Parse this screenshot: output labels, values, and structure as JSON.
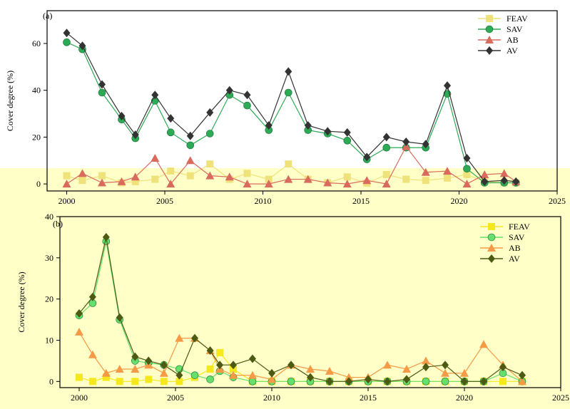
{
  "chart_data": [
    {
      "panel_label": "(a)",
      "type": "line",
      "ylabel": "Cover degree (%)",
      "xlabel": "",
      "xlim": [
        1999,
        2025
      ],
      "ylim": [
        -3,
        74
      ],
      "xticks": [
        2000,
        2005,
        2010,
        2015,
        2020,
        2025
      ],
      "yticks": [
        0,
        20,
        40,
        60
      ],
      "legend_position": "top-right",
      "series": [
        {
          "name": "FEAV",
          "color": "#f0e27a",
          "marker": "square",
          "x": [
            2000,
            2000.8,
            2001.8,
            2002.8,
            2003.5,
            2004.5,
            2005.3,
            2006.3,
            2007.3,
            2008.3,
            2009.2,
            2010.3,
            2011.3,
            2012.3,
            2013.3,
            2014.3,
            2015.3,
            2016.3,
            2017.3,
            2018.3,
            2019.4,
            2020.4,
            2021.3,
            2022.3,
            2022.9
          ],
          "values": [
            3.5,
            1.5,
            3.5,
            0.5,
            1,
            2,
            5.5,
            3.5,
            8.5,
            2,
            4.5,
            2,
            8.5,
            2,
            0.5,
            3,
            0.3,
            4,
            2,
            1.5,
            2.5,
            4,
            1,
            0.5,
            0.5
          ]
        },
        {
          "name": "SAV",
          "color": "#2daa55",
          "marker": "circle",
          "x": [
            2000,
            2000.8,
            2001.8,
            2002.8,
            2003.5,
            2004.5,
            2005.3,
            2006.3,
            2007.3,
            2008.3,
            2009.2,
            2010.3,
            2011.3,
            2012.3,
            2013.3,
            2014.3,
            2015.3,
            2016.3,
            2017.3,
            2018.3,
            2019.4,
            2020.4,
            2021.3,
            2022.3,
            2022.9
          ],
          "values": [
            60.5,
            57.5,
            39,
            27.5,
            19.5,
            35.5,
            22,
            16.5,
            21.5,
            38,
            33.5,
            23,
            39,
            23,
            21.5,
            18.5,
            10.5,
            15.5,
            15.5,
            15.5,
            38.5,
            6.5,
            0.5,
            0.5,
            0.5
          ]
        },
        {
          "name": "AB",
          "color": "#d86b5e",
          "marker": "triangle",
          "x": [
            2000,
            2000.8,
            2001.8,
            2002.8,
            2003.5,
            2004.5,
            2005.3,
            2006.3,
            2007.3,
            2008.3,
            2009.2,
            2010.3,
            2011.3,
            2012.3,
            2013.3,
            2014.3,
            2015.3,
            2016.3,
            2017.3,
            2018.3,
            2019.4,
            2020.4,
            2021.3,
            2022.3,
            2022.9
          ],
          "values": [
            0,
            4.5,
            0.5,
            1,
            3,
            11,
            0,
            10,
            3.5,
            3,
            0,
            0,
            2,
            2,
            0.5,
            0,
            1.5,
            0,
            16,
            5,
            5.5,
            0,
            4,
            4.5,
            1
          ]
        },
        {
          "name": "AV",
          "color": "#333333",
          "marker": "diamond",
          "x": [
            2000,
            2000.8,
            2001.8,
            2002.8,
            2003.5,
            2004.5,
            2005.3,
            2006.3,
            2007.3,
            2008.3,
            2009.2,
            2010.3,
            2011.3,
            2012.3,
            2013.3,
            2014.3,
            2015.3,
            2016.3,
            2017.3,
            2018.3,
            2019.4,
            2020.4,
            2021.3,
            2022.3,
            2022.9
          ],
          "values": [
            64.5,
            59,
            42.5,
            29,
            21,
            38,
            28,
            20.5,
            30.5,
            40,
            38,
            25,
            48,
            25,
            22.5,
            22,
            11.5,
            20,
            18,
            17,
            42,
            11,
            1,
            1.5,
            1
          ]
        }
      ]
    },
    {
      "panel_label": "(b)",
      "type": "line",
      "ylabel": "Cover degree (%)",
      "xlabel": "",
      "xlim": [
        1999,
        2025
      ],
      "ylim": [
        -1.5,
        40
      ],
      "xticks": [
        2000,
        2005,
        2010,
        2015,
        2020,
        2025
      ],
      "yticks": [
        0,
        10,
        20,
        30,
        40
      ],
      "legend_position": "top-right",
      "series": [
        {
          "name": "FEAV",
          "color": "#f5e81f",
          "marker": "square",
          "x": [
            2000,
            2000.7,
            2001.4,
            2002.1,
            2002.9,
            2003.6,
            2004.4,
            2005.2,
            2006,
            2006.8,
            2007.3,
            2008,
            2009,
            2010,
            2011,
            2012,
            2013,
            2014,
            2015,
            2016,
            2017,
            2018,
            2019,
            2020,
            2021,
            2022,
            2023
          ],
          "values": [
            1,
            0,
            1,
            0,
            0,
            0.5,
            0,
            0,
            1,
            3,
            7,
            3,
            0,
            0,
            0,
            0,
            0,
            0,
            0,
            0,
            0,
            0,
            0,
            0,
            0,
            0,
            0
          ]
        },
        {
          "name": "SAV",
          "color": "#66e06c",
          "marker": "circle",
          "x": [
            2000,
            2000.7,
            2001.4,
            2002.1,
            2002.9,
            2003.6,
            2004.4,
            2005.2,
            2006,
            2006.8,
            2007.3,
            2008,
            2009,
            2010,
            2011,
            2012,
            2013,
            2014,
            2015,
            2016,
            2017,
            2018,
            2019,
            2020,
            2021,
            2022,
            2023
          ],
          "values": [
            16,
            19,
            34,
            15,
            5,
            4.5,
            4,
            3,
            1.5,
            0.5,
            2.5,
            1,
            0,
            0,
            0,
            0,
            0,
            0,
            0,
            0,
            0,
            0,
            0,
            0,
            0,
            2,
            0
          ]
        },
        {
          "name": "AB",
          "color": "#f59a46",
          "marker": "triangle",
          "x": [
            2000,
            2000.7,
            2001.4,
            2002.1,
            2002.9,
            2003.6,
            2004.4,
            2005.2,
            2006,
            2006.8,
            2007.3,
            2008,
            2009,
            2010,
            2011,
            2012,
            2013,
            2014,
            2015,
            2016,
            2017,
            2018,
            2019,
            2020,
            2021,
            2022,
            2023
          ],
          "values": [
            12,
            6.5,
            2,
            3,
            3,
            4,
            2,
            10.5,
            10.5,
            7.5,
            3,
            1.5,
            1.5,
            0.5,
            4,
            3,
            2.5,
            1,
            1,
            4,
            3,
            5,
            2,
            2,
            9,
            4,
            0
          ]
        },
        {
          "name": "AV",
          "color": "#4d5a14",
          "marker": "diamond",
          "x": [
            2000,
            2000.7,
            2001.4,
            2002.1,
            2002.9,
            2003.6,
            2004.4,
            2005.2,
            2006,
            2006.8,
            2007.3,
            2008,
            2009,
            2010,
            2011,
            2012,
            2013,
            2014,
            2015,
            2016,
            2017,
            2018,
            2019,
            2020,
            2021,
            2022,
            2023
          ],
          "values": [
            16.5,
            20.5,
            35,
            15.5,
            6,
            5,
            4,
            1.5,
            10.5,
            7.5,
            4,
            4,
            5.5,
            2,
            4,
            1,
            0,
            0,
            0.5,
            0,
            0.5,
            3.5,
            4,
            0,
            0,
            3.5,
            1.5
          ]
        }
      ]
    }
  ]
}
